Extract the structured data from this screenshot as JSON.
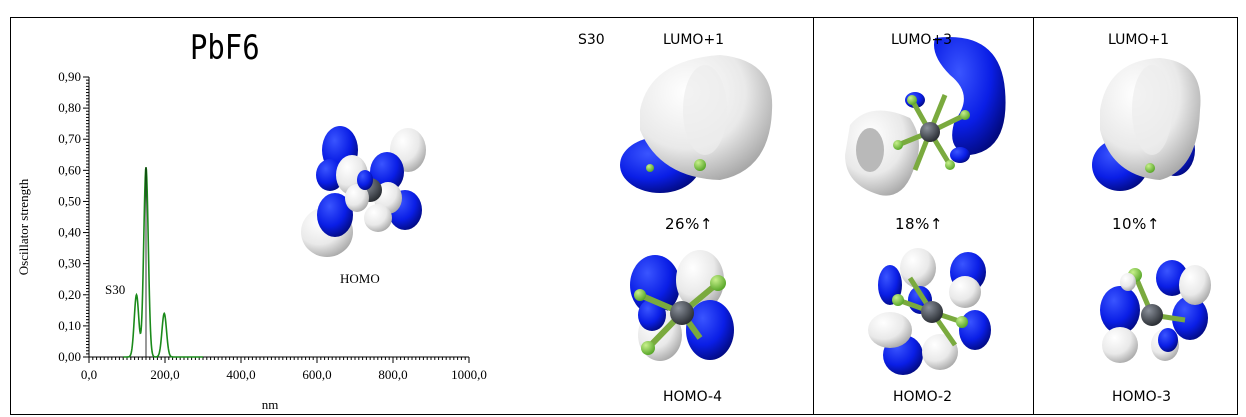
{
  "chart_data": {
    "type": "line",
    "title": "PbF6",
    "xlabel": "nm",
    "ylabel": "Oscillator strength",
    "xlim": [
      0,
      1000
    ],
    "ylim": [
      0,
      0.9
    ],
    "x_ticks": [
      "0,0",
      "200,0",
      "400,0",
      "600,0",
      "800,0",
      "1000,0"
    ],
    "y_ticks": [
      "0,00",
      "0,10",
      "0,20",
      "0,30",
      "0,40",
      "0,50",
      "0,60",
      "0,70",
      "0,80",
      "0,90"
    ],
    "series": [
      {
        "color": "#1a8a1a",
        "peaks": [
          {
            "x": 125,
            "y": 0.2
          },
          {
            "x": 150,
            "y": 0.61
          },
          {
            "x": 198,
            "y": 0.14
          }
        ]
      }
    ],
    "sticks": [
      {
        "x": 150,
        "y": 0.61
      }
    ],
    "annotations": {
      "state": "S30",
      "orbital": "HOMO"
    }
  },
  "panels": {
    "state_label": "S30",
    "columns": [
      {
        "top": "LUMO+1",
        "pct": "26%↑",
        "bottom": "HOMO-4"
      },
      {
        "top": "LUMO+3",
        "pct": "18%↑",
        "bottom": "HOMO-2"
      },
      {
        "top": "LUMO+1",
        "pct": "10%↑",
        "bottom": "HOMO-3"
      }
    ]
  },
  "colors": {
    "lobe_blue": "#0a1ee6",
    "lobe_white": "#efefef",
    "fluorine": "#8fd24a",
    "lead": "#4a4f57",
    "spectrum": "#1a8a1a"
  }
}
